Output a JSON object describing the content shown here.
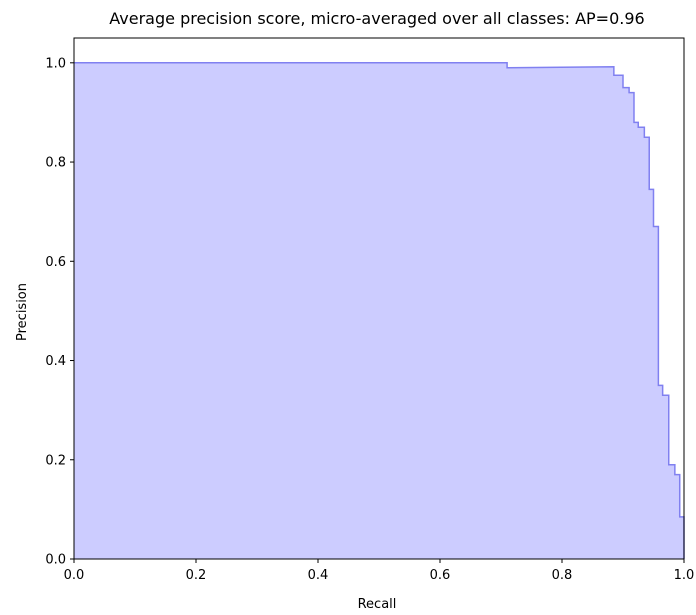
{
  "chart_data": {
    "type": "area",
    "title": "Average precision score, micro-averaged over all classes: AP=0.96",
    "xlabel": "Recall",
    "ylabel": "Precision",
    "xlim": [
      0.0,
      1.0
    ],
    "ylim": [
      0.0,
      1.05
    ],
    "xticks": [
      "0.0",
      "0.2",
      "0.4",
      "0.6",
      "0.8",
      "1.0"
    ],
    "yticks": [
      "0.0",
      "0.2",
      "0.4",
      "0.6",
      "0.8",
      "1.0"
    ],
    "grid": false,
    "step": "post",
    "fill_color": "#ccccff",
    "line_color": "#8080f0",
    "recall": [
      0.0,
      0.71,
      0.71,
      0.885,
      0.885,
      0.9,
      0.9,
      0.91,
      0.91,
      0.918,
      0.918,
      0.925,
      0.925,
      0.935,
      0.935,
      0.943,
      0.943,
      0.95,
      0.95,
      0.958,
      0.958,
      0.965,
      0.965,
      0.975,
      0.975,
      0.985,
      0.985,
      0.993,
      0.993,
      1.0,
      1.0
    ],
    "precision": [
      1.0,
      1.0,
      0.99,
      0.992,
      0.975,
      0.975,
      0.95,
      0.95,
      0.94,
      0.94,
      0.88,
      0.88,
      0.87,
      0.87,
      0.85,
      0.85,
      0.745,
      0.745,
      0.67,
      0.67,
      0.35,
      0.35,
      0.33,
      0.33,
      0.19,
      0.19,
      0.17,
      0.17,
      0.085,
      0.085,
      0.0
    ]
  }
}
